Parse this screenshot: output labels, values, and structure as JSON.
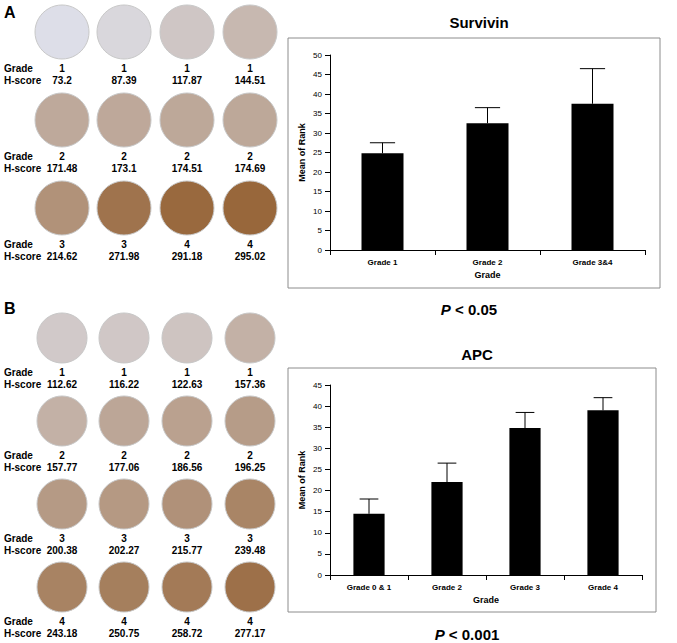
{
  "chart_data": [
    {
      "type": "bar",
      "title": "Survivin",
      "xlabel": "Grade",
      "ylabel": "Mean of Rank",
      "categories": [
        "Grade 1",
        "Grade 2",
        "Grade 3&4"
      ],
      "values": [
        24.8,
        32.5,
        37.5
      ],
      "errors": [
        2.7,
        4.0,
        9.0
      ],
      "color": "#000000",
      "ylim": [
        0,
        50
      ],
      "yticks": [
        0,
        5,
        10,
        15,
        20,
        25,
        30,
        35,
        40,
        45,
        50
      ],
      "grid": false,
      "annotations": [
        "P < 0.05"
      ]
    },
    {
      "type": "bar",
      "title": "APC",
      "xlabel": "Grade",
      "ylabel": "Mean of Rank",
      "categories": [
        "Grade 0 & 1",
        "Grade 2",
        "Grade 3",
        "Grade 4"
      ],
      "values": [
        14.5,
        22.0,
        34.8,
        39.0
      ],
      "errors": [
        3.5,
        4.5,
        3.7,
        3.0
      ],
      "color": "#000000",
      "ylim": [
        0,
        45
      ],
      "yticks": [
        0,
        5,
        10,
        15,
        20,
        25,
        30,
        35,
        40,
        45
      ],
      "grid": false,
      "annotations": [
        "P < 0.001"
      ]
    }
  ],
  "panels": [
    {
      "label": "A",
      "row_labels": [
        "Grade",
        "H-score"
      ],
      "cores": [
        [
          {
            "grade": 1,
            "h_score": 73.2
          },
          {
            "grade": 1,
            "h_score": 87.39
          },
          {
            "grade": 1,
            "h_score": 117.87
          },
          {
            "grade": 1,
            "h_score": 144.51
          }
        ],
        [
          {
            "grade": 2,
            "h_score": 171.48
          },
          {
            "grade": 2,
            "h_score": 173.1
          },
          {
            "grade": 2,
            "h_score": 174.51
          },
          {
            "grade": 2,
            "h_score": 174.69
          }
        ],
        [
          {
            "grade": 3,
            "h_score": 214.62
          },
          {
            "grade": 3,
            "h_score": 271.98
          },
          {
            "grade": 4,
            "h_score": 291.18
          },
          {
            "grade": 4,
            "h_score": 295.02
          }
        ]
      ]
    },
    {
      "label": "B",
      "row_labels": [
        "Grade",
        "H-score"
      ],
      "cores": [
        [
          {
            "grade": 1,
            "h_score": 112.62
          },
          {
            "grade": 1,
            "h_score": 116.22
          },
          {
            "grade": 1,
            "h_score": 122.63
          },
          {
            "grade": 1,
            "h_score": 157.36
          }
        ],
        [
          {
            "grade": 2,
            "h_score": 157.77
          },
          {
            "grade": 2,
            "h_score": 177.06
          },
          {
            "grade": 2,
            "h_score": 186.56
          },
          {
            "grade": 2,
            "h_score": 196.25
          }
        ],
        [
          {
            "grade": 3,
            "h_score": 200.38
          },
          {
            "grade": 3,
            "h_score": 202.27
          },
          {
            "grade": 3,
            "h_score": 215.77
          },
          {
            "grade": 3,
            "h_score": 239.48
          }
        ],
        [
          {
            "grade": 4,
            "h_score": 243.18
          },
          {
            "grade": 4,
            "h_score": 250.75
          },
          {
            "grade": 4,
            "h_score": 258.72
          },
          {
            "grade": 4,
            "h_score": 277.17
          }
        ]
      ]
    }
  ]
}
